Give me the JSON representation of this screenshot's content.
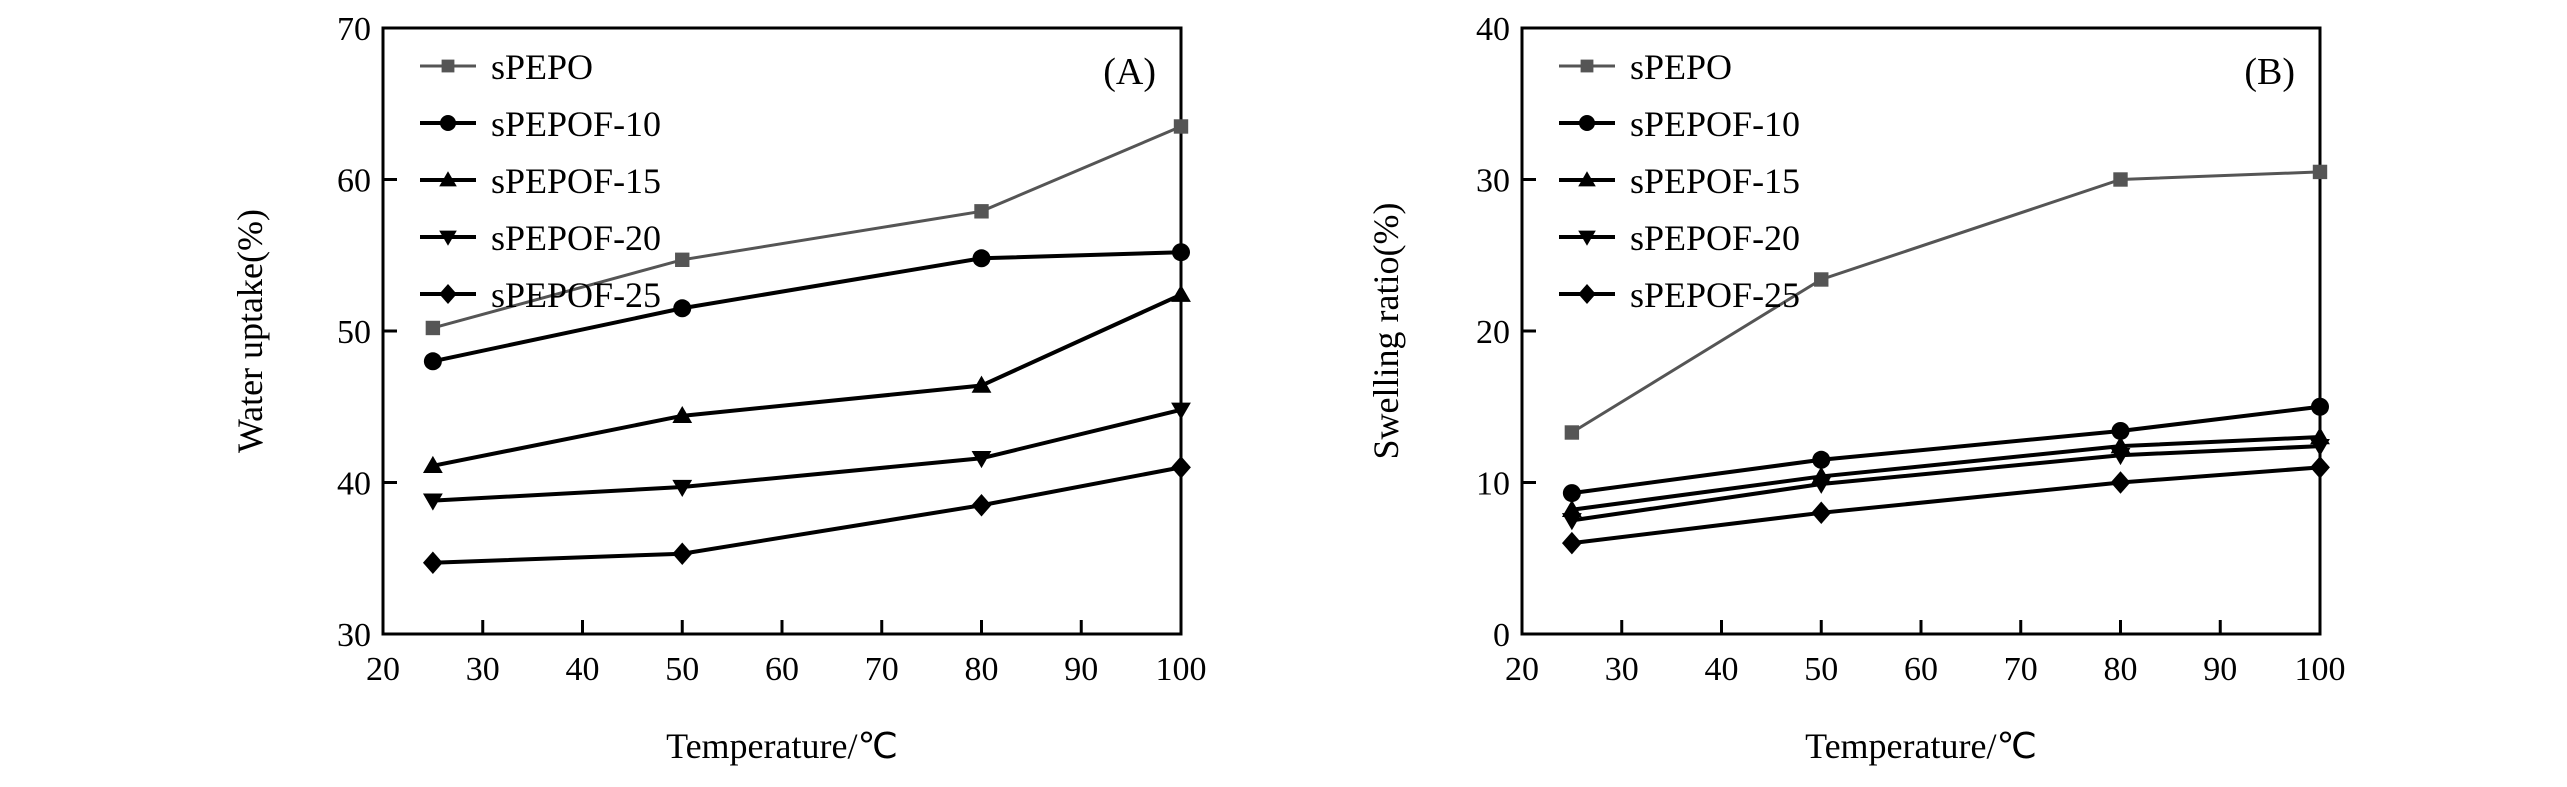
{
  "chart_data": [
    {
      "type": "line",
      "panel_label": "(A)",
      "xlabel": "Temperature/℃",
      "ylabel": "Water uptake(%)",
      "xlim": [
        20,
        100
      ],
      "ylim": [
        30,
        70
      ],
      "xticks": [
        20,
        30,
        40,
        50,
        60,
        70,
        80,
        90,
        100
      ],
      "yticks": [
        30,
        40,
        50,
        60,
        70
      ],
      "x": [
        25,
        50,
        80,
        100
      ],
      "legend_position": "top-left",
      "series": [
        {
          "name": "sPEPO",
          "marker": "square",
          "color": "#555555",
          "values": [
            50.2,
            54.7,
            57.9,
            63.5
          ]
        },
        {
          "name": "sPEPOF-10",
          "marker": "circle",
          "color": "#000000",
          "values": [
            48.0,
            51.5,
            54.8,
            55.2
          ]
        },
        {
          "name": "sPEPOF-15",
          "marker": "triangle-up",
          "color": "#000000",
          "values": [
            41.1,
            44.4,
            46.4,
            52.4
          ]
        },
        {
          "name": "sPEPOF-20",
          "marker": "triangle-down",
          "color": "#000000",
          "values": [
            38.8,
            39.7,
            41.6,
            44.8
          ]
        },
        {
          "name": "sPEPOF-25",
          "marker": "diamond",
          "color": "#000000",
          "values": [
            34.7,
            35.3,
            38.5,
            41.0
          ]
        }
      ]
    },
    {
      "type": "line",
      "panel_label": "(B)",
      "xlabel": "Temperature/℃",
      "ylabel": "Swelling ratio(%)",
      "xlim": [
        20,
        100
      ],
      "ylim": [
        0,
        40
      ],
      "xticks": [
        20,
        30,
        40,
        50,
        60,
        70,
        80,
        90,
        100
      ],
      "yticks": [
        0,
        10,
        20,
        30,
        40
      ],
      "x": [
        25,
        50,
        80,
        100
      ],
      "legend_position": "top-left",
      "series": [
        {
          "name": "sPEPO",
          "marker": "square",
          "color": "#555555",
          "values": [
            13.3,
            23.4,
            30.0,
            30.5
          ]
        },
        {
          "name": "sPEPOF-10",
          "marker": "circle",
          "color": "#000000",
          "values": [
            9.3,
            11.5,
            13.4,
            15.0
          ]
        },
        {
          "name": "sPEPOF-15",
          "marker": "triangle-up",
          "color": "#000000",
          "values": [
            8.2,
            10.4,
            12.4,
            13.0
          ]
        },
        {
          "name": "sPEPOF-20",
          "marker": "triangle-down",
          "color": "#000000",
          "values": [
            7.5,
            9.9,
            11.8,
            12.4
          ]
        },
        {
          "name": "sPEPOF-25",
          "marker": "diamond",
          "color": "#000000",
          "values": [
            6.0,
            8.0,
            10.0,
            11.0
          ]
        }
      ]
    }
  ]
}
